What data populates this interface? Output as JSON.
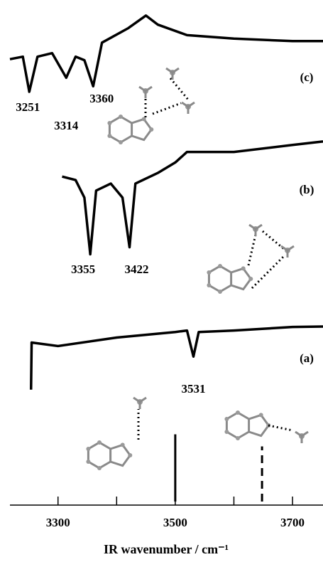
{
  "chart_data": {
    "type": "line",
    "xlabel": "IR wavenumber / cm⁻¹",
    "xlim": [
      3218,
      3752
    ],
    "xticks": [
      3300,
      3500,
      3700
    ],
    "minor_xticks": [
      3400,
      3600
    ],
    "ylim": [
      0,
      100
    ],
    "color": "#000000",
    "series": [
      {
        "name": "(c)",
        "color": "#000000",
        "x": [
          3218,
          3240,
          3251,
          3265,
          3290,
          3314,
          3330,
          3345,
          3360,
          3375,
          3420,
          3450,
          3470,
          3520,
          3600,
          3700,
          3752
        ],
        "values": [
          88.2,
          88.7,
          81.7,
          88.7,
          89.4,
          84.5,
          88.7,
          88.0,
          82.8,
          91.5,
          94.4,
          96.9,
          95.1,
          93.0,
          92.3,
          91.8,
          91.8
        ],
        "peaks": [
          "3251",
          "3314",
          "3360"
        ],
        "peak_x": [
          3251,
          3314,
          3360
        ]
      },
      {
        "name": "(b)",
        "color": "#000000",
        "x": [
          3307,
          3330,
          3345,
          3355,
          3365,
          3390,
          3410,
          3422,
          3432,
          3470,
          3500,
          3520,
          3600,
          3700,
          3752
        ],
        "values": [
          64.8,
          64.1,
          60.6,
          49.3,
          62.0,
          63.4,
          60.6,
          50.7,
          63.4,
          65.5,
          67.6,
          69.7,
          69.7,
          71.1,
          71.8
        ],
        "peaks": [
          "3355",
          "3422"
        ],
        "peak_x": [
          3355,
          3422
        ]
      },
      {
        "name": "(a)",
        "color": "#000000",
        "x": [
          3254,
          3255,
          3300,
          3400,
          3500,
          3520,
          3531,
          3540,
          3600,
          3700,
          3752
        ],
        "values": [
          22.3,
          31.7,
          31.0,
          32.7,
          33.8,
          34.1,
          28.9,
          33.8,
          34.1,
          34.8,
          34.9
        ],
        "peaks": [
          "3531"
        ],
        "peak_x": [
          3531
        ]
      }
    ],
    "sticks": {
      "x": [
        3500,
        3648
      ],
      "values": [
        13.4,
        11.0
      ],
      "dashed": [
        false,
        true
      ]
    }
  }
}
